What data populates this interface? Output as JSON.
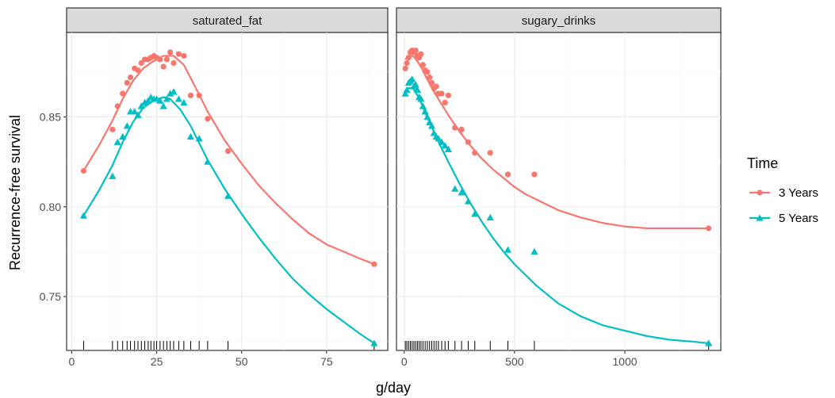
{
  "chart_data": {
    "type": "line",
    "ylabel": "Recurrence-free survival",
    "xlabel": "g/day",
    "ylim": [
      0.72,
      0.897
    ],
    "y_ticks": [
      0.75,
      0.8,
      0.85
    ],
    "y_tick_labels": [
      "0.75",
      "0.80",
      "0.85"
    ],
    "legend": {
      "title": "Time",
      "position": "right",
      "entries": [
        {
          "label": "3 Years",
          "color": "#f8766d",
          "marker": "circle"
        },
        {
          "label": "5 Years",
          "color": "#00bfc4",
          "marker": "triangle"
        }
      ]
    },
    "facets": [
      {
        "title": "saturated_fat",
        "xlim": [
          -1.5,
          93
        ],
        "x_ticks": [
          0,
          25,
          50,
          75
        ],
        "x_tick_labels": [
          "0",
          "25",
          "50",
          "75"
        ],
        "rug": [
          3.5,
          12,
          13.5,
          15,
          16.3,
          17.3,
          18.5,
          19.5,
          20.5,
          21.5,
          22.5,
          23.3,
          24.2,
          25,
          26,
          27,
          28,
          29,
          30,
          31.5,
          33,
          35,
          37.5,
          40,
          46,
          89
        ],
        "series": [
          {
            "name": "3 Years",
            "points": [
              [
                3.5,
                0.82
              ],
              [
                12,
                0.843
              ],
              [
                13.5,
                0.856
              ],
              [
                15,
                0.863
              ],
              [
                16.3,
                0.869
              ],
              [
                17.3,
                0.872
              ],
              [
                18.5,
                0.877
              ],
              [
                19.5,
                0.876
              ],
              [
                20.5,
                0.88
              ],
              [
                21.5,
                0.882
              ],
              [
                22.5,
                0.882
              ],
              [
                23.3,
                0.883
              ],
              [
                24.2,
                0.884
              ],
              [
                25,
                0.883
              ],
              [
                26,
                0.882
              ],
              [
                27,
                0.878
              ],
              [
                28,
                0.882
              ],
              [
                29,
                0.886
              ],
              [
                30,
                0.88
              ],
              [
                31.5,
                0.885
              ],
              [
                33,
                0.884
              ],
              [
                35,
                0.862
              ],
              [
                37.5,
                0.862
              ],
              [
                40,
                0.849
              ],
              [
                46,
                0.831
              ],
              [
                89,
                0.768
              ]
            ],
            "curve": [
              [
                3.5,
                0.82
              ],
              [
                8,
                0.834
              ],
              [
                12,
                0.848
              ],
              [
                15,
                0.86
              ],
              [
                18,
                0.87
              ],
              [
                21,
                0.877
              ],
              [
                24,
                0.881
              ],
              [
                27,
                0.884
              ],
              [
                30,
                0.884
              ],
              [
                33,
                0.879
              ],
              [
                36,
                0.868
              ],
              [
                40,
                0.853
              ],
              [
                45,
                0.837
              ],
              [
                50,
                0.824
              ],
              [
                55,
                0.812
              ],
              [
                60,
                0.802
              ],
              [
                65,
                0.793
              ],
              [
                70,
                0.785
              ],
              [
                75,
                0.779
              ],
              [
                80,
                0.775
              ],
              [
                85,
                0.771
              ],
              [
                89,
                0.768
              ]
            ]
          },
          {
            "name": "5 Years",
            "points": [
              [
                3.5,
                0.795
              ],
              [
                12,
                0.817
              ],
              [
                13.5,
                0.836
              ],
              [
                15,
                0.839
              ],
              [
                16.3,
                0.845
              ],
              [
                17.3,
                0.853
              ],
              [
                18.5,
                0.853
              ],
              [
                19.5,
                0.851
              ],
              [
                20.5,
                0.856
              ],
              [
                21.5,
                0.858
              ],
              [
                22.5,
                0.859
              ],
              [
                23.3,
                0.861
              ],
              [
                24.2,
                0.86
              ],
              [
                25,
                0.86
              ],
              [
                26,
                0.859
              ],
              [
                27,
                0.856
              ],
              [
                28,
                0.86
              ],
              [
                29,
                0.863
              ],
              [
                30,
                0.864
              ],
              [
                31.5,
                0.86
              ],
              [
                33,
                0.858
              ],
              [
                35,
                0.839
              ],
              [
                37.5,
                0.838
              ],
              [
                40,
                0.825
              ],
              [
                46,
                0.806
              ],
              [
                89,
                0.724
              ]
            ],
            "curve": [
              [
                3.5,
                0.795
              ],
              [
                8,
                0.809
              ],
              [
                12,
                0.823
              ],
              [
                15,
                0.836
              ],
              [
                18,
                0.847
              ],
              [
                21,
                0.855
              ],
              [
                24,
                0.859
              ],
              [
                27,
                0.861
              ],
              [
                29,
                0.86
              ],
              [
                32,
                0.854
              ],
              [
                35,
                0.845
              ],
              [
                40,
                0.826
              ],
              [
                45,
                0.81
              ],
              [
                50,
                0.796
              ],
              [
                55,
                0.783
              ],
              [
                60,
                0.771
              ],
              [
                65,
                0.76
              ],
              [
                70,
                0.751
              ],
              [
                75,
                0.743
              ],
              [
                80,
                0.736
              ],
              [
                85,
                0.729
              ],
              [
                89,
                0.724
              ]
            ]
          }
        ]
      },
      {
        "title": "sugary_drinks",
        "xlim": [
          -35,
          1435
        ],
        "x_ticks": [
          0,
          500,
          1000
        ],
        "x_tick_labels": [
          "0",
          "500",
          "1000"
        ],
        "rug": [
          5,
          12,
          20,
          28,
          36,
          44,
          52,
          60,
          68,
          76,
          85,
          95,
          105,
          115,
          125,
          135,
          145,
          155,
          170,
          185,
          200,
          230,
          260,
          290,
          320,
          390,
          470,
          590,
          1380
        ],
        "series": [
          {
            "name": "3 Years",
            "points": [
              [
                5,
                0.877
              ],
              [
                12,
                0.88
              ],
              [
                20,
                0.883
              ],
              [
                28,
                0.886
              ],
              [
                36,
                0.887
              ],
              [
                44,
                0.886
              ],
              [
                52,
                0.887
              ],
              [
                60,
                0.884
              ],
              [
                68,
                0.883
              ],
              [
                76,
                0.885
              ],
              [
                85,
                0.879
              ],
              [
                95,
                0.876
              ],
              [
                105,
                0.875
              ],
              [
                115,
                0.872
              ],
              [
                125,
                0.869
              ],
              [
                135,
                0.866
              ],
              [
                145,
                0.867
              ],
              [
                155,
                0.863
              ],
              [
                170,
                0.863
              ],
              [
                185,
                0.858
              ],
              [
                200,
                0.862
              ],
              [
                230,
                0.844
              ],
              [
                260,
                0.843
              ],
              [
                290,
                0.836
              ],
              [
                320,
                0.83
              ],
              [
                390,
                0.83
              ],
              [
                470,
                0.818
              ],
              [
                590,
                0.818
              ],
              [
                1380,
                0.788
              ]
            ],
            "curve": [
              [
                5,
                0.882
              ],
              [
                20,
                0.884
              ],
              [
                40,
                0.884
              ],
              [
                60,
                0.881
              ],
              [
                80,
                0.877
              ],
              [
                100,
                0.872
              ],
              [
                130,
                0.865
              ],
              [
                160,
                0.859
              ],
              [
                200,
                0.851
              ],
              [
                250,
                0.842
              ],
              [
                300,
                0.834
              ],
              [
                350,
                0.827
              ],
              [
                400,
                0.821
              ],
              [
                450,
                0.816
              ],
              [
                500,
                0.811
              ],
              [
                550,
                0.807
              ],
              [
                600,
                0.804
              ],
              [
                700,
                0.798
              ],
              [
                800,
                0.794
              ],
              [
                900,
                0.791
              ],
              [
                1000,
                0.789
              ],
              [
                1100,
                0.788
              ],
              [
                1200,
                0.788
              ],
              [
                1300,
                0.788
              ],
              [
                1380,
                0.788
              ]
            ]
          },
          {
            "name": "5 Years",
            "points": [
              [
                5,
                0.863
              ],
              [
                12,
                0.865
              ],
              [
                20,
                0.869
              ],
              [
                28,
                0.87
              ],
              [
                36,
                0.871
              ],
              [
                44,
                0.867
              ],
              [
                52,
                0.868
              ],
              [
                60,
                0.865
              ],
              [
                68,
                0.861
              ],
              [
                76,
                0.86
              ],
              [
                85,
                0.856
              ],
              [
                95,
                0.853
              ],
              [
                105,
                0.85
              ],
              [
                115,
                0.847
              ],
              [
                125,
                0.845
              ],
              [
                135,
                0.841
              ],
              [
                145,
                0.839
              ],
              [
                155,
                0.838
              ],
              [
                170,
                0.836
              ],
              [
                185,
                0.834
              ],
              [
                200,
                0.832
              ],
              [
                230,
                0.81
              ],
              [
                260,
                0.808
              ],
              [
                290,
                0.803
              ],
              [
                320,
                0.796
              ],
              [
                390,
                0.794
              ],
              [
                470,
                0.776
              ],
              [
                590,
                0.775
              ],
              [
                1380,
                0.724
              ]
            ],
            "curve": [
              [
                5,
                0.864
              ],
              [
                20,
                0.866
              ],
              [
                40,
                0.866
              ],
              [
                60,
                0.862
              ],
              [
                80,
                0.857
              ],
              [
                100,
                0.851
              ],
              [
                130,
                0.843
              ],
              [
                160,
                0.835
              ],
              [
                200,
                0.825
              ],
              [
                250,
                0.813
              ],
              [
                300,
                0.802
              ],
              [
                350,
                0.792
              ],
              [
                400,
                0.783
              ],
              [
                450,
                0.775
              ],
              [
                500,
                0.768
              ],
              [
                550,
                0.762
              ],
              [
                600,
                0.756
              ],
              [
                700,
                0.746
              ],
              [
                800,
                0.739
              ],
              [
                900,
                0.734
              ],
              [
                1000,
                0.731
              ],
              [
                1100,
                0.728
              ],
              [
                1200,
                0.726
              ],
              [
                1300,
                0.725
              ],
              [
                1380,
                0.724
              ]
            ]
          }
        ]
      }
    ]
  }
}
